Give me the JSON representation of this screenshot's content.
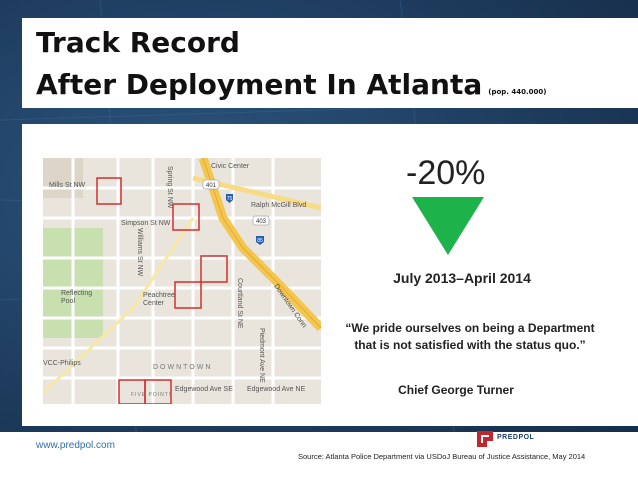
{
  "title": {
    "line1": "Track Record",
    "line2": "After Deployment In Atlanta",
    "population_note": "(pop. 440.000)"
  },
  "stat": {
    "value": "-20%",
    "arrow_color": "#1eb24a",
    "date_range": "July 2013–April 2014"
  },
  "quote": {
    "text": "“We pride ourselves on being a Department that is not satisfied with the status quo.”",
    "attribution": "Chief George Turner"
  },
  "map": {
    "labels": {
      "civic_center": "Civic Center",
      "mills": "Mills St NW",
      "simpson": "Simpson St NW",
      "ralph": "Ralph McGill Blvd",
      "peachtree": "Peachtree Center",
      "reflecting": "Reflecting Pool",
      "vcc": "VCC-Philips",
      "edgewood1": "Edgewood Ave SE",
      "edgewood2": "Edgewood Ave NE",
      "downtown": "DOWNTOWN",
      "piedmont": "Piedmont Ave NE",
      "courtland": "Courtland St NE",
      "williams": "Williams St NW",
      "spring": "Spring St NW",
      "fivepoints": "FIVE POINTS",
      "highway_401": "401",
      "highway_403": "403",
      "highway_75": "75",
      "highway_85": "85",
      "downtown_connector": "Downtown Conn"
    },
    "hotspot_color": "#d32f2f"
  },
  "footer": {
    "url": "www.predpol.com",
    "source": "Source: Atlanta Police Department via USDoJ Bureau of Justice Assistance, May 2014",
    "logo_text": "PREDPOL",
    "logo_color": "#c0282d"
  }
}
